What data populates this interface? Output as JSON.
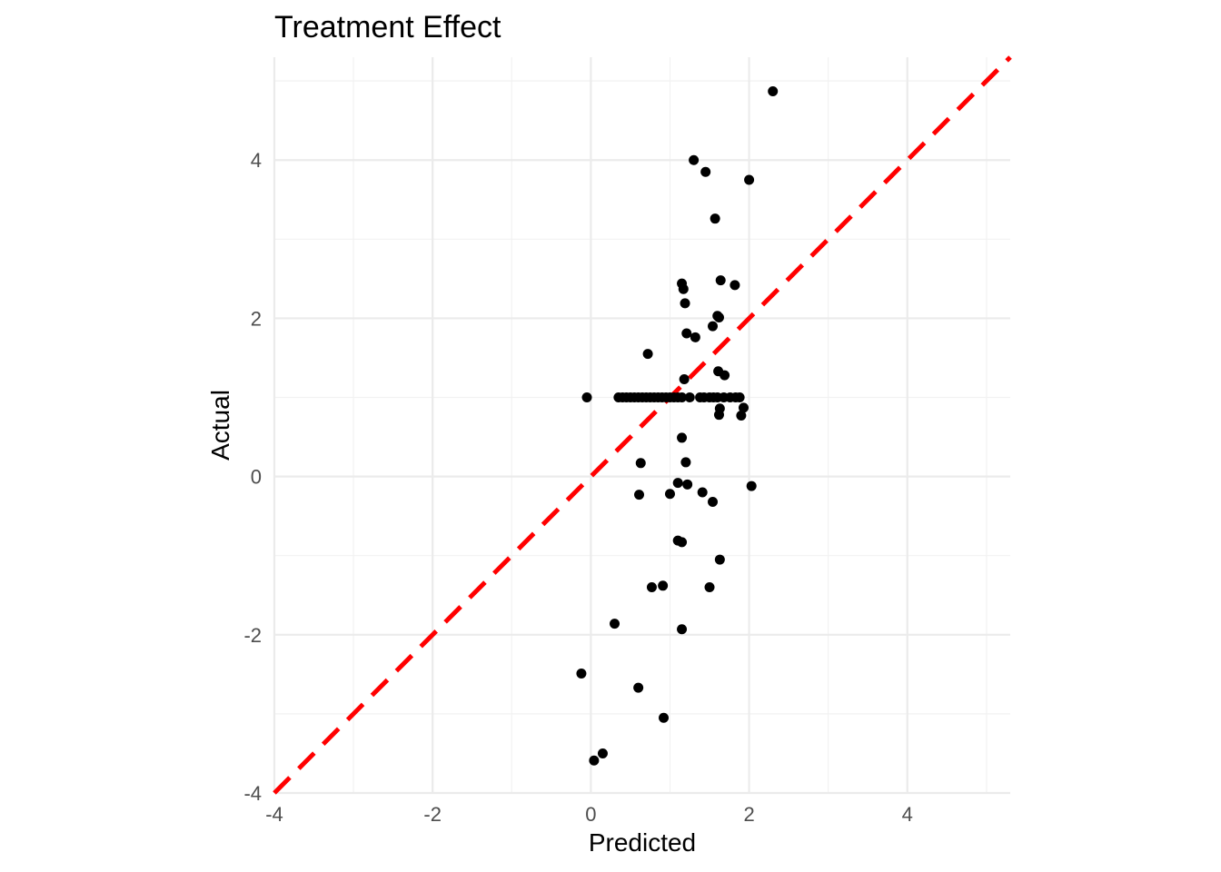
{
  "chart_data": {
    "type": "scatter",
    "title": "Treatment Effect",
    "xlabel": "Predicted",
    "ylabel": "Actual",
    "xlim": [
      -4,
      5.3
    ],
    "ylim": [
      -4,
      5.3
    ],
    "xticks": [
      -4,
      -2,
      0,
      2,
      4
    ],
    "yticks": [
      -4,
      -2,
      0,
      2,
      4
    ],
    "grid": true,
    "point_color": "#000000",
    "reference_line": {
      "type": "identity",
      "slope": 1,
      "intercept": 0,
      "color": "#ff0000",
      "style": "dashed"
    },
    "points": [
      [
        2.3,
        4.87
      ],
      [
        1.3,
        4.0
      ],
      [
        1.45,
        3.85
      ],
      [
        2.0,
        3.75
      ],
      [
        1.57,
        3.26
      ],
      [
        1.15,
        2.44
      ],
      [
        1.17,
        2.37
      ],
      [
        1.64,
        2.48
      ],
      [
        1.82,
        2.42
      ],
      [
        1.19,
        2.19
      ],
      [
        1.6,
        2.03
      ],
      [
        1.62,
        2.01
      ],
      [
        1.54,
        1.9
      ],
      [
        1.21,
        1.81
      ],
      [
        1.32,
        1.76
      ],
      [
        0.72,
        1.55
      ],
      [
        1.61,
        1.33
      ],
      [
        1.69,
        1.28
      ],
      [
        1.18,
        1.23
      ],
      [
        -0.05,
        1.0
      ],
      [
        0.35,
        1.0
      ],
      [
        0.4,
        1.0
      ],
      [
        0.45,
        1.0
      ],
      [
        0.5,
        1.0
      ],
      [
        0.55,
        1.0
      ],
      [
        0.6,
        1.0
      ],
      [
        0.65,
        1.0
      ],
      [
        0.7,
        1.0
      ],
      [
        0.75,
        1.0
      ],
      [
        0.8,
        1.0
      ],
      [
        0.85,
        1.0
      ],
      [
        0.9,
        1.0
      ],
      [
        0.95,
        1.0
      ],
      [
        1.0,
        1.0
      ],
      [
        1.05,
        1.0
      ],
      [
        1.1,
        1.0
      ],
      [
        1.15,
        1.0
      ],
      [
        1.25,
        1.0
      ],
      [
        1.38,
        1.0
      ],
      [
        1.43,
        1.0
      ],
      [
        1.5,
        1.0
      ],
      [
        1.55,
        1.0
      ],
      [
        1.6,
        1.0
      ],
      [
        1.68,
        1.0
      ],
      [
        1.76,
        1.0
      ],
      [
        1.83,
        1.0
      ],
      [
        1.88,
        1.0
      ],
      [
        1.93,
        0.87
      ],
      [
        1.63,
        0.86
      ],
      [
        1.62,
        0.78
      ],
      [
        1.9,
        0.77
      ],
      [
        1.15,
        0.49
      ],
      [
        1.2,
        0.18
      ],
      [
        0.63,
        0.17
      ],
      [
        1.1,
        -0.08
      ],
      [
        1.22,
        -0.1
      ],
      [
        2.03,
        -0.12
      ],
      [
        0.61,
        -0.23
      ],
      [
        1.0,
        -0.22
      ],
      [
        1.41,
        -0.2
      ],
      [
        1.54,
        -0.32
      ],
      [
        1.1,
        -0.81
      ],
      [
        1.15,
        -0.83
      ],
      [
        1.63,
        -1.05
      ],
      [
        0.77,
        -1.4
      ],
      [
        0.91,
        -1.38
      ],
      [
        1.5,
        -1.4
      ],
      [
        0.3,
        -1.86
      ],
      [
        1.15,
        -1.93
      ],
      [
        -0.12,
        -2.49
      ],
      [
        0.6,
        -2.67
      ],
      [
        0.92,
        -3.05
      ],
      [
        0.15,
        -3.5
      ],
      [
        0.04,
        -3.59
      ]
    ]
  }
}
